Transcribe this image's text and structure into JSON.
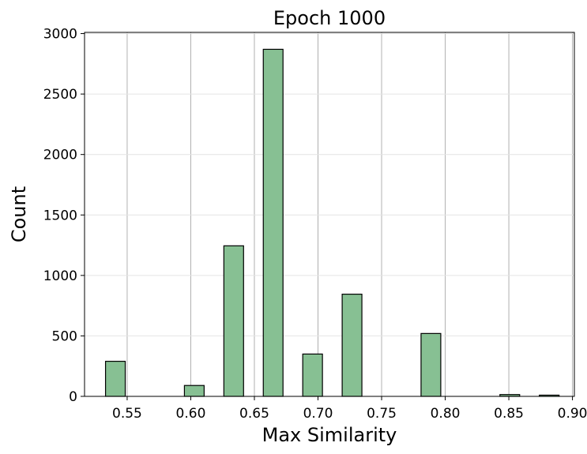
{
  "chart_data": {
    "type": "bar",
    "title": "Epoch 1000",
    "xlabel": "Max Similarity",
    "ylabel": "Count",
    "xlim": [
      0.5165,
      0.9015
    ],
    "ylim": [
      0,
      3010
    ],
    "xticks": [
      "0.55",
      "0.60",
      "0.65",
      "0.70",
      "0.75",
      "0.80",
      "0.85",
      "0.90"
    ],
    "xtick_values": [
      0.55,
      0.6,
      0.65,
      0.7,
      0.75,
      0.8,
      0.85,
      0.9
    ],
    "yticks": [
      "0",
      "500",
      "1000",
      "1500",
      "2000",
      "2500",
      "3000"
    ],
    "ytick_values": [
      0,
      500,
      1000,
      1500,
      2000,
      2500,
      3000
    ],
    "bin_width": 0.0155,
    "bins": [
      {
        "x_start": 0.533,
        "count": 290
      },
      {
        "x_start": 0.5485,
        "count": 0
      },
      {
        "x_start": 0.564,
        "count": 0
      },
      {
        "x_start": 0.5795,
        "count": 0
      },
      {
        "x_start": 0.595,
        "count": 90
      },
      {
        "x_start": 0.6105,
        "count": 0
      },
      {
        "x_start": 0.626,
        "count": 1245
      },
      {
        "x_start": 0.6415,
        "count": 0
      },
      {
        "x_start": 0.657,
        "count": 2870
      },
      {
        "x_start": 0.6725,
        "count": 0
      },
      {
        "x_start": 0.688,
        "count": 350
      },
      {
        "x_start": 0.7035,
        "count": 0
      },
      {
        "x_start": 0.719,
        "count": 845
      },
      {
        "x_start": 0.7345,
        "count": 0
      },
      {
        "x_start": 0.75,
        "count": 0
      },
      {
        "x_start": 0.7655,
        "count": 0
      },
      {
        "x_start": 0.781,
        "count": 520
      },
      {
        "x_start": 0.7965,
        "count": 0
      },
      {
        "x_start": 0.812,
        "count": 0
      },
      {
        "x_start": 0.8275,
        "count": 0
      },
      {
        "x_start": 0.843,
        "count": 15
      },
      {
        "x_start": 0.8585,
        "count": 0
      },
      {
        "x_start": 0.874,
        "count": 10
      }
    ],
    "bar_color": "#87c093",
    "edge_color": "#000000",
    "vertical_grid_color": "#b0b0b0",
    "horizontal_grid_color": "#e4e4e4",
    "grid": true,
    "legend": "none"
  }
}
